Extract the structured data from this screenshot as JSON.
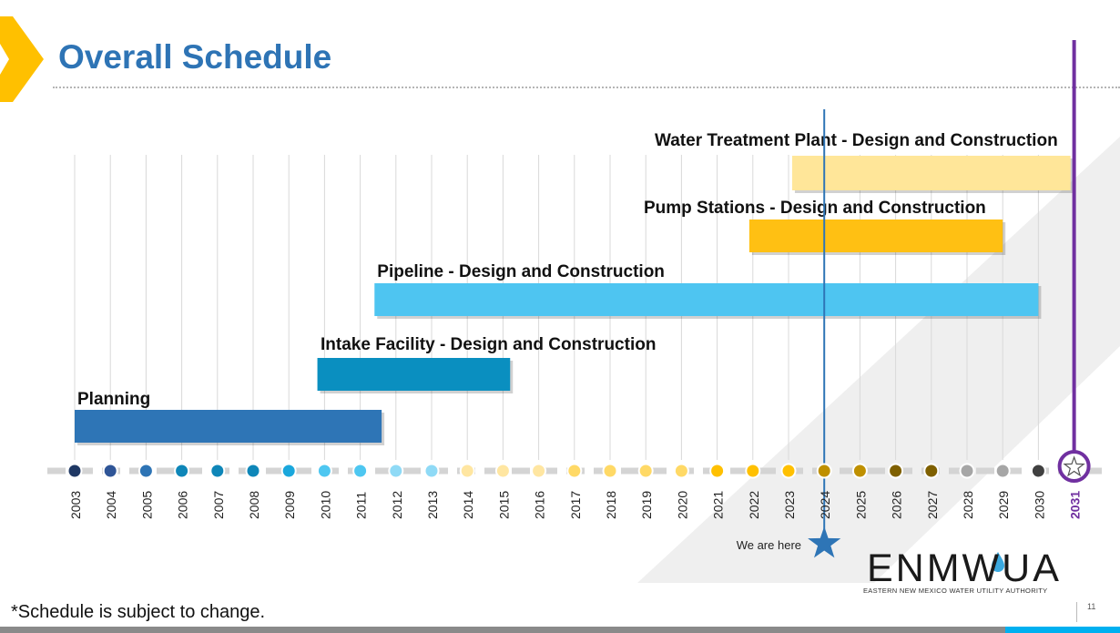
{
  "header": {
    "title": "Overall Schedule"
  },
  "footnote": "*Schedule is subject to change.",
  "page_number": "11",
  "logo": {
    "name": "ENMWUA",
    "subtitle": "EASTERN NEW MEXICO WATER UTILITY AUTHORITY"
  },
  "marker": {
    "label": "We are here",
    "year": 2024
  },
  "colors": {
    "title": "#2e74b5",
    "accent_yellow": "#ffc000",
    "end_marker": "#7030a0",
    "now_line": "#2e75b6"
  },
  "chart_data": {
    "type": "gantt",
    "title": "Overall Schedule",
    "x_axis": {
      "min": 2003,
      "max": 2031,
      "step": 1
    },
    "end_year_highlight": 2031,
    "years": [
      "2003",
      "2004",
      "2005",
      "2006",
      "2007",
      "2008",
      "2009",
      "2010",
      "2011",
      "2012",
      "2013",
      "2014",
      "2015",
      "2016",
      "2017",
      "2018",
      "2019",
      "2020",
      "2021",
      "2022",
      "2023",
      "2024",
      "2025",
      "2026",
      "2027",
      "2028",
      "2029",
      "2030",
      "2031"
    ],
    "year_dot_colors": [
      "#1f3864",
      "#2f5597",
      "#2e74b5",
      "#0e86b8",
      "#0e86b8",
      "#0e86b8",
      "#1aa7dc",
      "#4ec7f1",
      "#4ec7f1",
      "#8fdaf6",
      "#8fdaf6",
      "#ffe6a1",
      "#ffe6a1",
      "#ffe6a1",
      "#ffd966",
      "#ffd966",
      "#ffd966",
      "#ffd966",
      "#ffc000",
      "#ffc000",
      "#ffc000",
      "#bf9000",
      "#bf9000",
      "#7f6000",
      "#7f6000",
      "#a6a6a6",
      "#a6a6a6",
      "#404040",
      "#ffffff"
    ],
    "tasks": [
      {
        "name": "Planning",
        "start": 2003.0,
        "end": 2011.6,
        "color": "#2e75b6"
      },
      {
        "name": "Intake Facility - Design and Construction",
        "start": 2009.8,
        "end": 2015.2,
        "color": "#0a8fc0"
      },
      {
        "name": "Pipeline - Design and Construction",
        "start": 2011.4,
        "end": 2030.0,
        "color": "#4ec5f1"
      },
      {
        "name": "Pump Stations - Design and Construction",
        "start": 2021.9,
        "end": 2029.0,
        "color": "#ffc013"
      },
      {
        "name": "Water Treatment Plant - Design and Construction",
        "start": 2023.1,
        "end": 2030.9,
        "color": "#ffe699"
      }
    ]
  }
}
